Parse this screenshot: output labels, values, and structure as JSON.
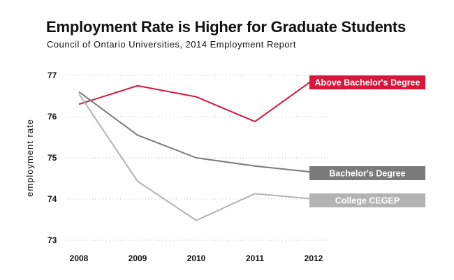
{
  "chart_data": {
    "type": "line",
    "title": "Employment Rate is Higher for Graduate Students",
    "subtitle": "Council of Ontario Universities, 2014 Employment Report",
    "ylabel": "employment rate",
    "xlabel": "",
    "x": [
      "2008",
      "2009",
      "2010",
      "2011",
      "2012"
    ],
    "yticks": [
      73,
      74,
      75,
      76,
      77
    ],
    "ylim": [
      73,
      77
    ],
    "grid": true,
    "legend": "direct labels at line ends",
    "series": [
      {
        "name": "Above Bachelor's Degree",
        "color": "#d6163a",
        "values": [
          76.3,
          76.75,
          76.48,
          75.88,
          76.9
        ]
      },
      {
        "name": "Bachelor's Degree",
        "color": "#7a7a7a",
        "values": [
          76.6,
          75.55,
          75.0,
          74.8,
          74.65
        ]
      },
      {
        "name": "College CEGEP",
        "color": "#b3b3b3",
        "values": [
          76.55,
          74.43,
          73.48,
          74.13,
          74.0
        ]
      }
    ]
  }
}
